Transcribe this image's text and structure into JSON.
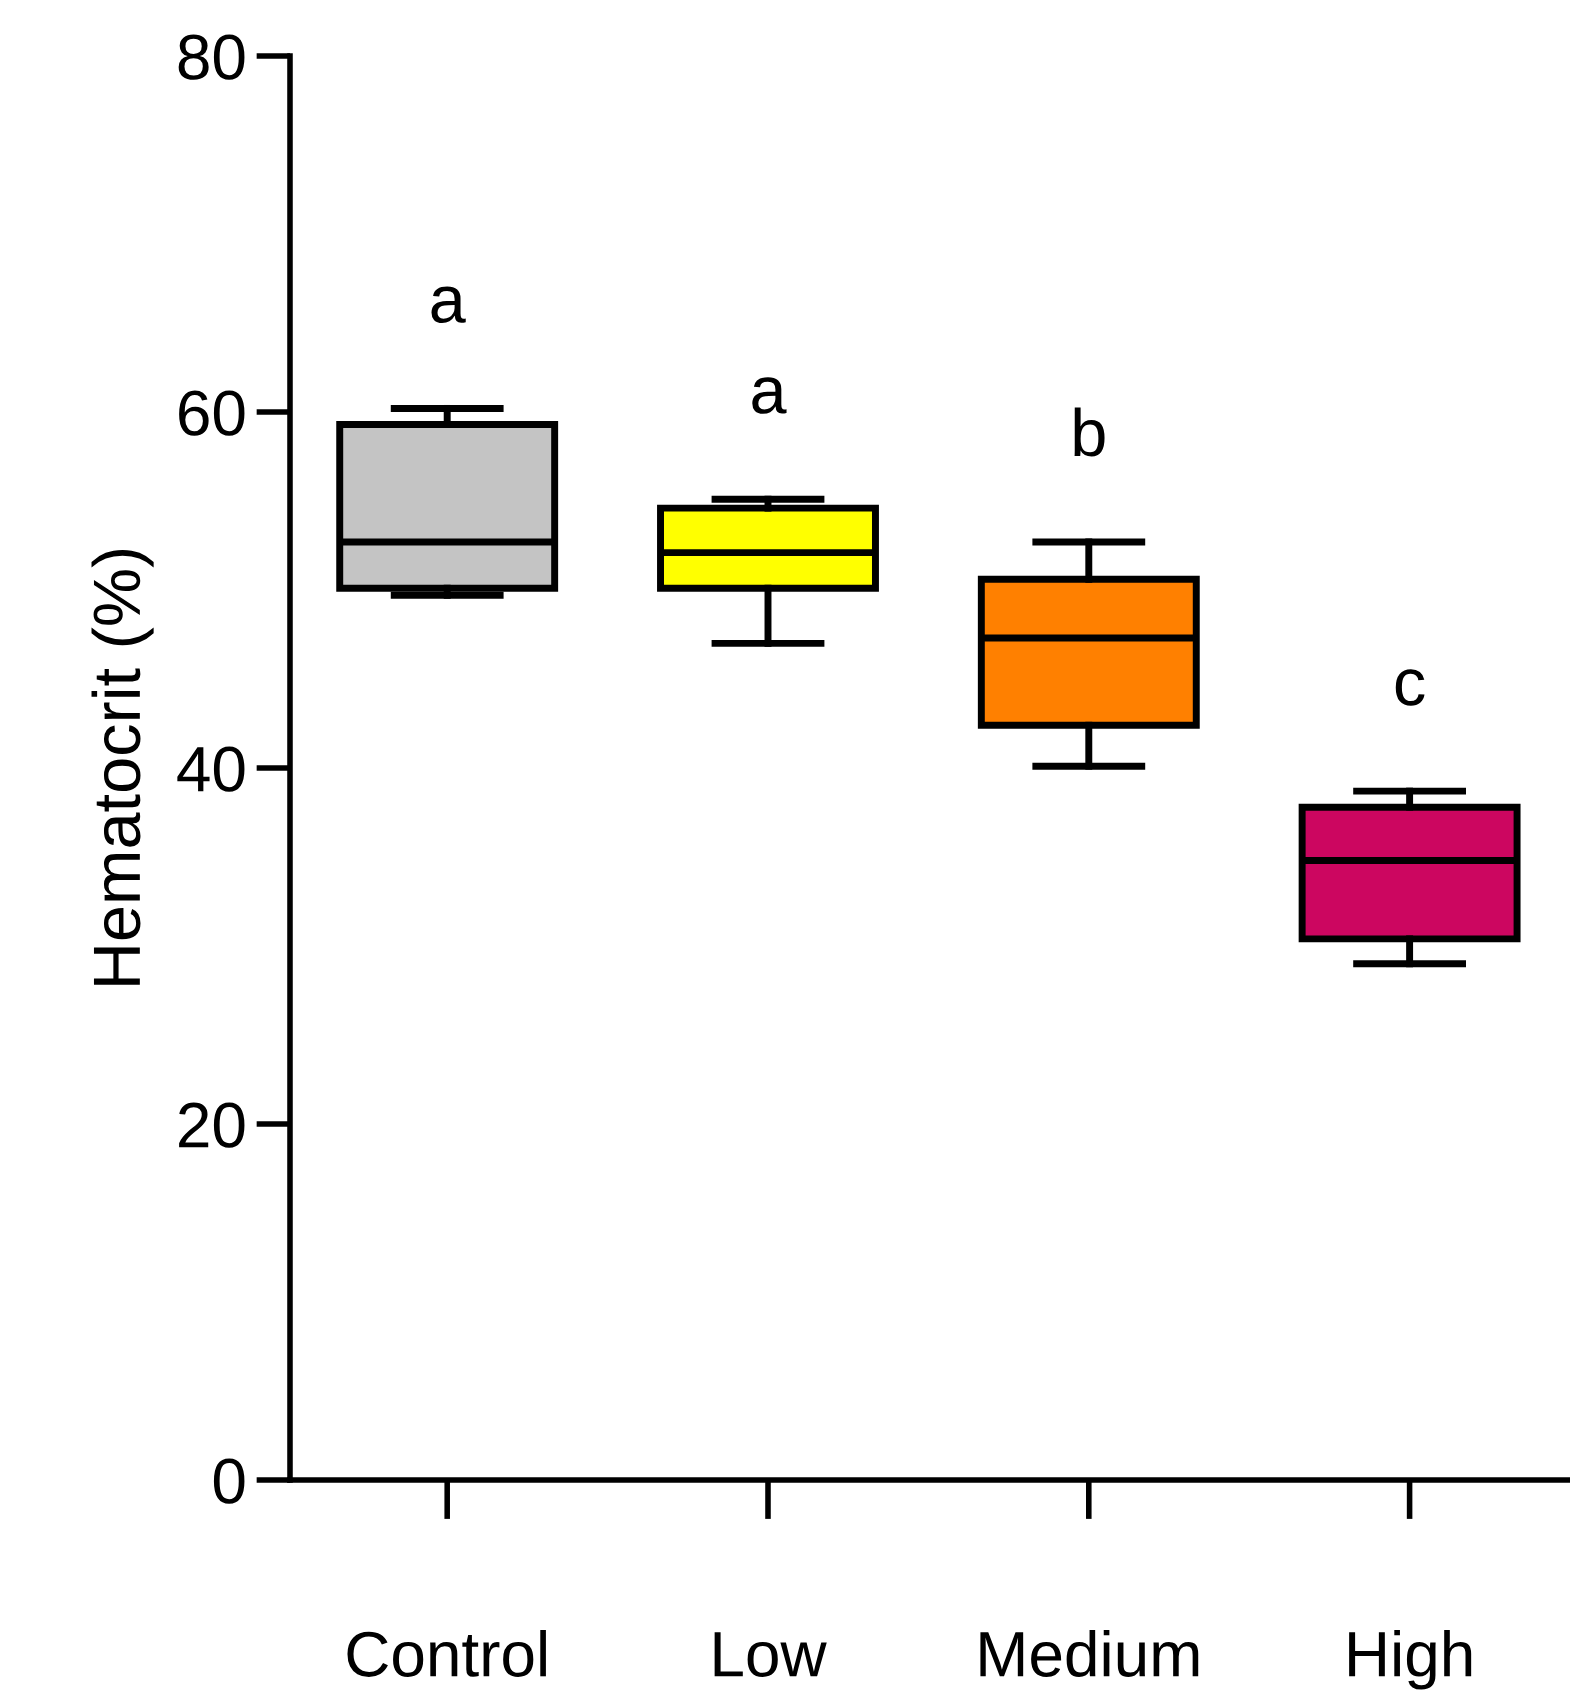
{
  "chart_data": {
    "type": "box",
    "ylabel": "Hematocrit (%)",
    "categories": [
      "Control",
      "Low",
      "Medium",
      "High"
    ],
    "boxes": [
      {
        "low": 49.7,
        "q1": 50.1,
        "median": 52.7,
        "q3": 59.3,
        "high": 60.2
      },
      {
        "low": 47.0,
        "q1": 50.1,
        "median": 52.1,
        "q3": 54.6,
        "high": 55.1
      },
      {
        "low": 40.1,
        "q1": 42.4,
        "median": 47.3,
        "q3": 50.6,
        "high": 52.7
      },
      {
        "low": 29.0,
        "q1": 30.4,
        "median": 34.8,
        "q3": 37.8,
        "high": 38.7
      }
    ],
    "colors": [
      "#c4c4c4",
      "#ffff00",
      "#ff8000",
      "#cc0660"
    ],
    "ylim": [
      0,
      80
    ],
    "yticks": [
      0,
      20,
      40,
      60,
      80
    ],
    "grid": false,
    "annotations": [
      "a",
      "a",
      "b",
      "c"
    ]
  }
}
